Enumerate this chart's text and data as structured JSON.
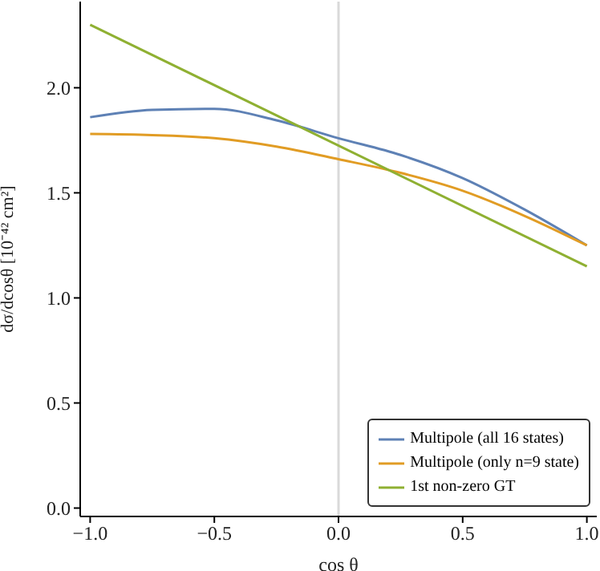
{
  "chart_data": {
    "type": "line",
    "xlabel": "cos θ",
    "ylabel": "dσ/dcosθ [10⁻⁴² cm²]",
    "xlim": [
      -1.04,
      1.04
    ],
    "ylim": [
      -0.04,
      2.41
    ],
    "xticks": [
      {
        "value": -1,
        "label": "−1.0"
      },
      {
        "value": -0.5,
        "label": "−0.5"
      },
      {
        "value": 0,
        "label": "0.0"
      },
      {
        "value": 0.5,
        "label": "0.5"
      },
      {
        "value": 1,
        "label": "1.0"
      }
    ],
    "yticks": [
      {
        "value": 0,
        "label": "0.0"
      },
      {
        "value": 0.5,
        "label": "0.5"
      },
      {
        "value": 1,
        "label": "1.0"
      },
      {
        "value": 1.5,
        "label": "1.5"
      },
      {
        "value": 2,
        "label": "2.0"
      }
    ],
    "x": [
      -1,
      -0.75,
      -0.5,
      -0.25,
      0,
      0.25,
      0.5,
      0.75,
      1
    ],
    "series": [
      {
        "name": "Multipole (all 16 states)",
        "color": "#5e81b5",
        "values": [
          1.86,
          1.895,
          1.9,
          1.845,
          1.76,
          1.68,
          1.57,
          1.42,
          1.25
        ]
      },
      {
        "name": "Multipole (only n=9 state)",
        "color": "#e19c24",
        "values": [
          1.78,
          1.775,
          1.76,
          1.72,
          1.66,
          1.595,
          1.51,
          1.39,
          1.25
        ]
      },
      {
        "name": "1st non-zero GT",
        "color": "#8fb032",
        "x": [
          -1,
          1
        ],
        "values": [
          2.3,
          1.15
        ]
      }
    ],
    "ref_lines": [
      {
        "axis": "x",
        "value": 0,
        "color": "#d9d9d9"
      }
    ],
    "legend": "bottom right",
    "marker": "none",
    "line_style": "solid"
  }
}
